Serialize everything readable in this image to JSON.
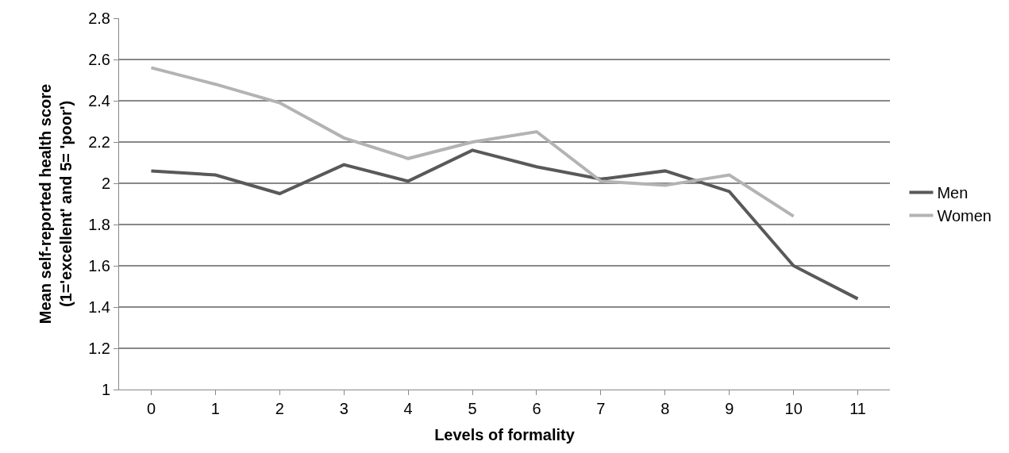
{
  "chart_data": {
    "type": "line",
    "xlabel": "Levels of formality",
    "ylabel": "Mean self-reported health score\n(1='excellent' and 5= 'poor')",
    "categories": [
      "0",
      "1",
      "2",
      "3",
      "4",
      "5",
      "6",
      "7",
      "8",
      "9",
      "10",
      "11"
    ],
    "series": [
      {
        "name": "Men",
        "color": "#595959",
        "values": [
          2.06,
          2.04,
          1.95,
          2.09,
          2.01,
          2.16,
          2.08,
          2.02,
          2.06,
          1.96,
          1.6,
          1.44
        ]
      },
      {
        "name": "Women",
        "color": "#b3b3b3",
        "values": [
          2.56,
          2.48,
          2.39,
          2.22,
          2.12,
          2.2,
          2.25,
          2.01,
          1.99,
          2.04,
          1.84,
          null
        ]
      }
    ],
    "ylim": [
      1,
      2.8
    ],
    "yticks": [
      1,
      1.2,
      1.4,
      1.6,
      1.8,
      2,
      2.2,
      2.4,
      2.6,
      2.8
    ],
    "grid": "y",
    "legend": "right",
    "marker": "none",
    "line_style": "solid"
  }
}
